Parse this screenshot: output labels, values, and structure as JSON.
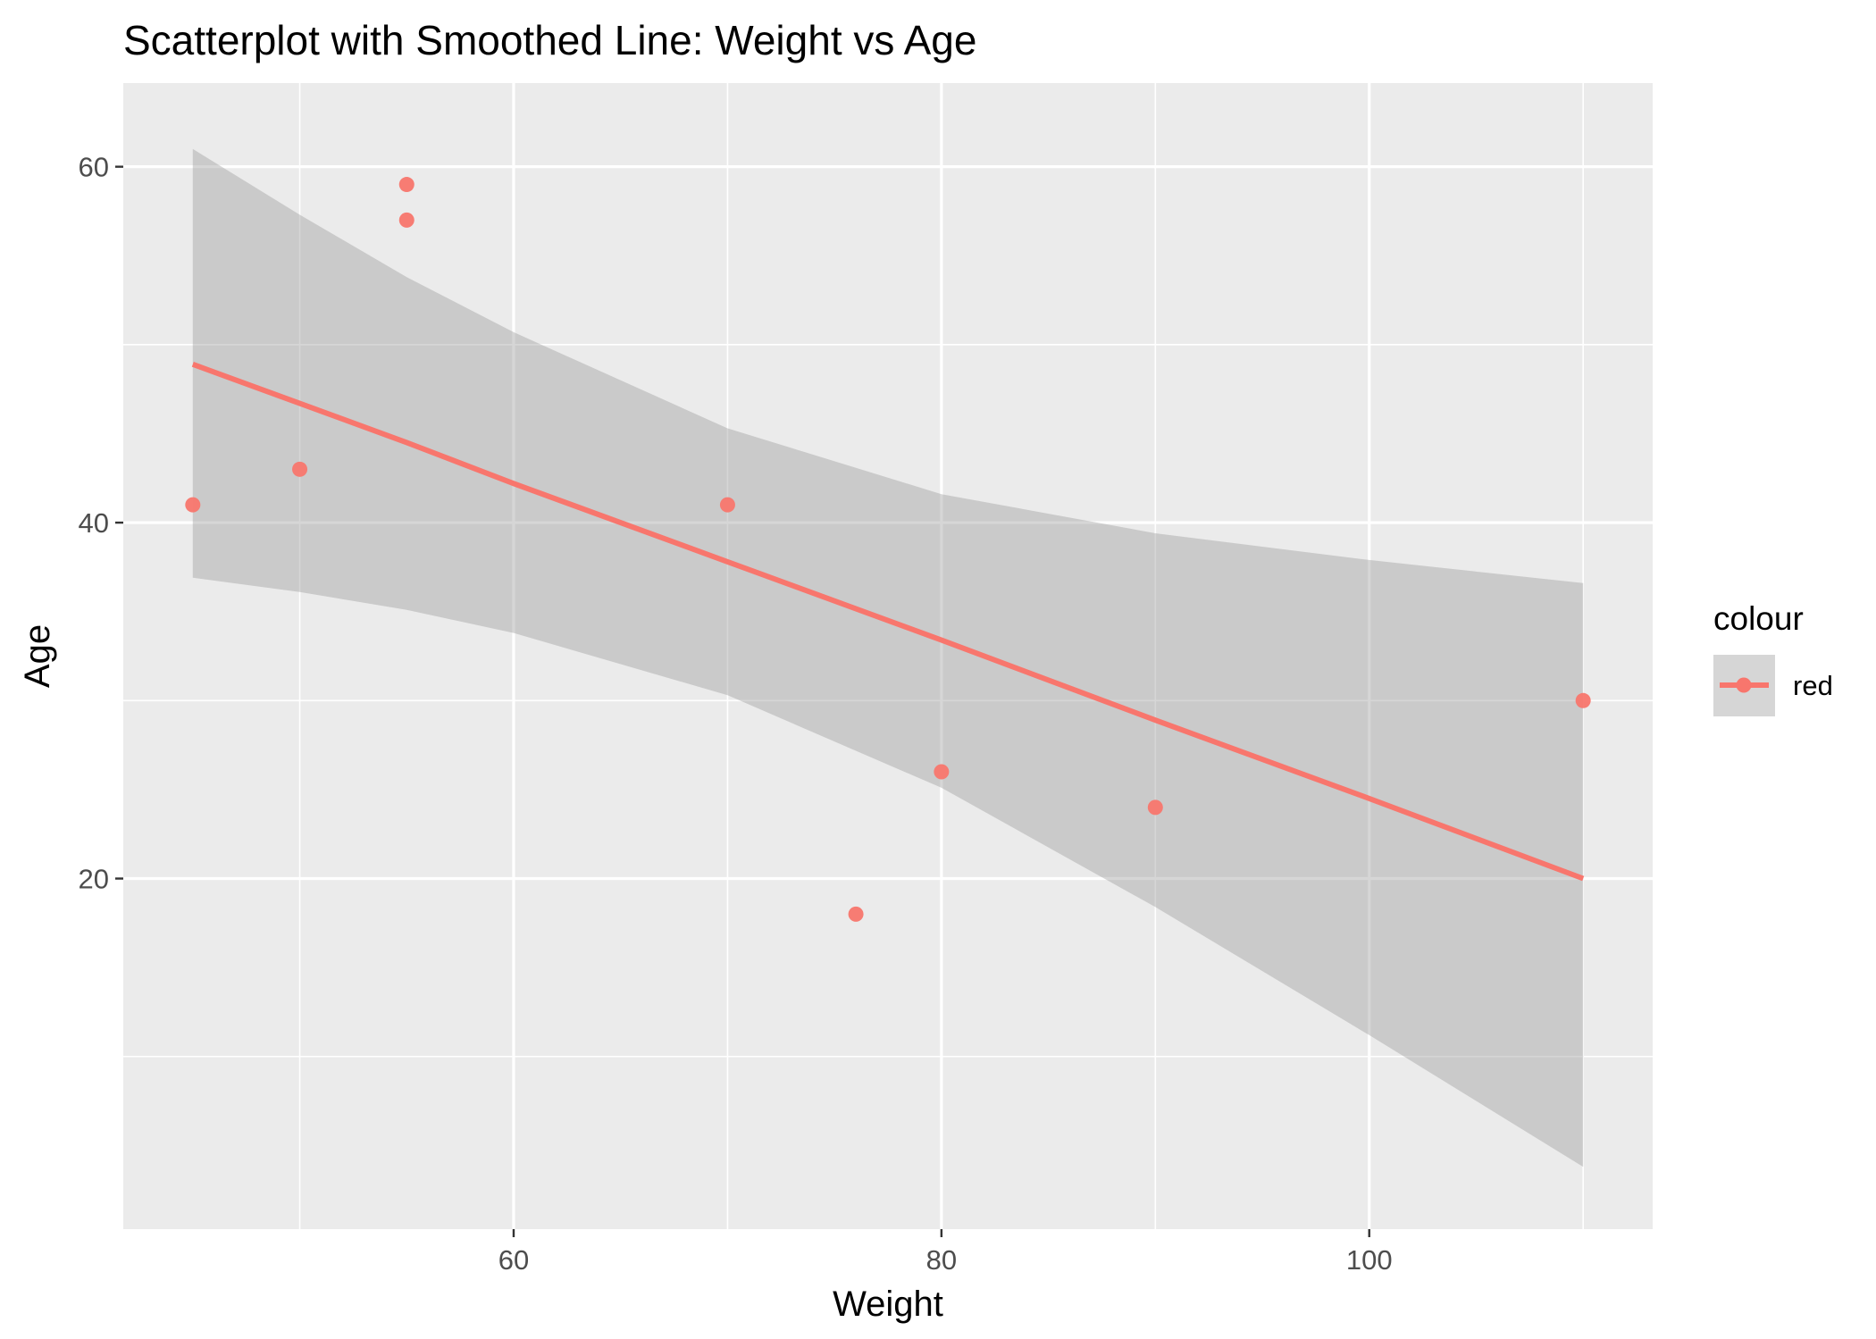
{
  "chart_data": {
    "type": "scatter",
    "title": "Scatterplot with Smoothed Line: Weight vs Age",
    "xlabel": "Weight",
    "ylabel": "Age",
    "xlim": [
      41.75,
      113.25
    ],
    "ylim": [
      0.3,
      64.7
    ],
    "xticks": [
      60,
      80,
      100
    ],
    "yticks": [
      20,
      40,
      60
    ],
    "x_minor_gridlines": [
      50,
      70,
      90,
      110
    ],
    "y_minor_gridlines": [
      10,
      30,
      50
    ],
    "grid": true,
    "series": [
      {
        "name": "red",
        "color": "#F8766D",
        "points": [
          {
            "x": 45,
            "y": 41
          },
          {
            "x": 50,
            "y": 43
          },
          {
            "x": 55,
            "y": 59
          },
          {
            "x": 55,
            "y": 57
          },
          {
            "x": 70,
            "y": 41
          },
          {
            "x": 76,
            "y": 18
          },
          {
            "x": 80,
            "y": 26
          },
          {
            "x": 90,
            "y": 24
          },
          {
            "x": 110,
            "y": 30
          }
        ]
      }
    ],
    "smooth": {
      "method": "linear",
      "color": "#F8766D",
      "x": [
        45,
        50,
        55,
        60,
        70,
        80,
        90,
        100,
        110
      ],
      "fit": [
        48.9,
        46.7,
        44.5,
        42.2,
        37.8,
        33.4,
        28.9,
        24.5,
        20.0
      ],
      "lower": [
        36.9,
        36.1,
        35.1,
        33.8,
        30.3,
        25.1,
        18.4,
        11.2,
        3.8
      ],
      "upper": [
        61.0,
        57.3,
        53.8,
        50.7,
        45.3,
        41.6,
        39.4,
        37.9,
        36.6
      ]
    },
    "legend": {
      "title": "colour",
      "position": "right",
      "entries": [
        "red"
      ]
    }
  },
  "colors": {
    "panel_background": "#EBEBEB",
    "gridline": "#FFFFFF",
    "ribbon": "#C9C9C9",
    "tick_label": "#4D4D4D",
    "point": "#F8766D"
  }
}
